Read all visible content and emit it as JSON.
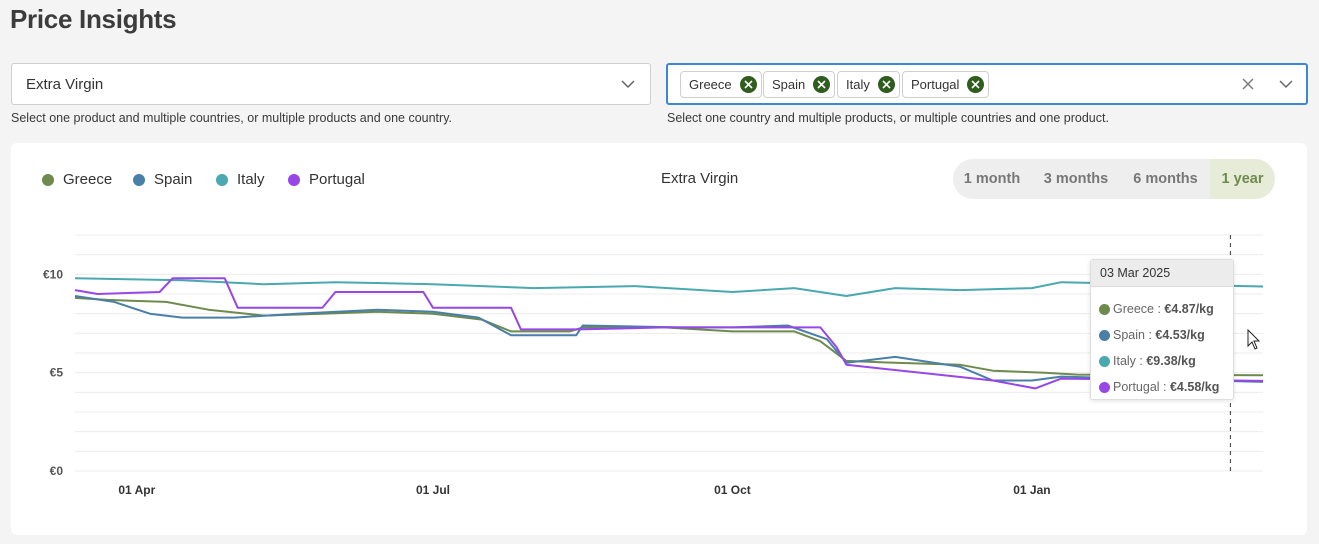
{
  "page": {
    "title": "Price Insights"
  },
  "product_select": {
    "value": "Extra Virgin",
    "helper": "Select one product and multiple countries, or multiple products and one country."
  },
  "country_select": {
    "chips": [
      {
        "label": "Greece"
      },
      {
        "label": "Spain"
      },
      {
        "label": "Italy"
      },
      {
        "label": "Portugal"
      }
    ],
    "helper": "Select one country and multiple products, or multiple countries and one product."
  },
  "legend": [
    {
      "label": "Greece",
      "color": "#6e8a4c"
    },
    {
      "label": "Spain",
      "color": "#4a7fa8"
    },
    {
      "label": "Italy",
      "color": "#4aa8b0"
    },
    {
      "label": "Portugal",
      "color": "#9747e6"
    }
  ],
  "time_ranges": [
    {
      "label": "1 month",
      "active": false
    },
    {
      "label": "3 months",
      "active": false
    },
    {
      "label": "6 months",
      "active": false
    },
    {
      "label": "1 year",
      "active": true
    }
  ],
  "tooltip": {
    "date": "03 Mar 2025",
    "rows": [
      {
        "country": "Greece",
        "sep": " : ",
        "value": "€4.87/kg",
        "color": "#6e8a4c"
      },
      {
        "country": "Spain",
        "sep": " : ",
        "value": "€4.53/kg",
        "color": "#4a7fa8"
      },
      {
        "country": "Italy",
        "sep": " : ",
        "value": "€9.38/kg",
        "color": "#4aa8b0"
      },
      {
        "country": "Portugal",
        "sep": " : ",
        "value": "€4.58/kg",
        "color": "#9747e6"
      }
    ]
  },
  "chart_data": {
    "type": "line",
    "title": "Extra Virgin",
    "x_range": [
      "2024-03-13",
      "2025-03-13"
    ],
    "ylim": [
      0,
      12
    ],
    "y_ticks": [
      {
        "value": 10,
        "label": "€10"
      },
      {
        "value": 5,
        "label": "€5"
      },
      {
        "value": 0,
        "label": "€0"
      }
    ],
    "x_ticks": [
      {
        "date": "2024-04-01",
        "label": "01 Apr"
      },
      {
        "date": "2024-07-01",
        "label": "01 Jul"
      },
      {
        "date": "2024-10-01",
        "label": "01 Oct"
      },
      {
        "date": "2025-01-01",
        "label": "01 Jan"
      }
    ],
    "grid": true,
    "legend_position": "top-left",
    "hover_date": "2025-03-03",
    "series": [
      {
        "name": "Greece",
        "color": "#6e8a4c",
        "points": [
          [
            "2024-03-13",
            8.8
          ],
          [
            "2024-03-23",
            8.7
          ],
          [
            "2024-04-10",
            8.6
          ],
          [
            "2024-04-23",
            8.2
          ],
          [
            "2024-05-10",
            7.9
          ],
          [
            "2024-05-28",
            8.0
          ],
          [
            "2024-06-14",
            8.1
          ],
          [
            "2024-07-01",
            8.0
          ],
          [
            "2024-07-16",
            7.7
          ],
          [
            "2024-07-25",
            7.1
          ],
          [
            "2024-08-12",
            7.1
          ],
          [
            "2024-08-16",
            7.3
          ],
          [
            "2024-09-10",
            7.3
          ],
          [
            "2024-10-01",
            7.1
          ],
          [
            "2024-10-20",
            7.1
          ],
          [
            "2024-10-28",
            6.6
          ],
          [
            "2024-11-05",
            5.6
          ],
          [
            "2024-11-20",
            5.5
          ],
          [
            "2024-12-10",
            5.4
          ],
          [
            "2024-12-20",
            5.1
          ],
          [
            "2025-01-05",
            5.0
          ],
          [
            "2025-01-15",
            4.9
          ],
          [
            "2025-03-13",
            4.87
          ]
        ]
      },
      {
        "name": "Spain",
        "color": "#4a7fa8",
        "points": [
          [
            "2024-03-13",
            8.9
          ],
          [
            "2024-03-25",
            8.6
          ],
          [
            "2024-04-05",
            8.0
          ],
          [
            "2024-04-15",
            7.8
          ],
          [
            "2024-05-01",
            7.8
          ],
          [
            "2024-05-20",
            8.0
          ],
          [
            "2024-06-14",
            8.2
          ],
          [
            "2024-07-01",
            8.1
          ],
          [
            "2024-07-15",
            7.8
          ],
          [
            "2024-07-25",
            6.9
          ],
          [
            "2024-08-14",
            6.9
          ],
          [
            "2024-08-16",
            7.4
          ],
          [
            "2024-09-15",
            7.3
          ],
          [
            "2024-10-01",
            7.3
          ],
          [
            "2024-10-18",
            7.4
          ],
          [
            "2024-10-30",
            6.7
          ],
          [
            "2024-11-05",
            5.5
          ],
          [
            "2024-11-20",
            5.8
          ],
          [
            "2024-12-10",
            5.3
          ],
          [
            "2024-12-20",
            4.6
          ],
          [
            "2025-01-01",
            4.6
          ],
          [
            "2025-01-10",
            4.8
          ],
          [
            "2025-03-13",
            4.53
          ]
        ]
      },
      {
        "name": "Italy",
        "color": "#4aa8b0",
        "points": [
          [
            "2024-03-13",
            9.8
          ],
          [
            "2024-04-15",
            9.7
          ],
          [
            "2024-05-10",
            9.5
          ],
          [
            "2024-06-01",
            9.6
          ],
          [
            "2024-07-01",
            9.5
          ],
          [
            "2024-08-01",
            9.3
          ],
          [
            "2024-09-01",
            9.4
          ],
          [
            "2024-10-01",
            9.1
          ],
          [
            "2024-10-20",
            9.3
          ],
          [
            "2024-11-05",
            8.9
          ],
          [
            "2024-11-20",
            9.3
          ],
          [
            "2024-12-10",
            9.2
          ],
          [
            "2025-01-01",
            9.3
          ],
          [
            "2025-01-10",
            9.6
          ],
          [
            "2025-03-13",
            9.38
          ]
        ]
      },
      {
        "name": "Portugal",
        "color": "#9747e6",
        "points": [
          [
            "2024-03-13",
            9.2
          ],
          [
            "2024-03-20",
            9.0
          ],
          [
            "2024-04-08",
            9.1
          ],
          [
            "2024-04-12",
            9.8
          ],
          [
            "2024-04-28",
            9.8
          ],
          [
            "2024-05-02",
            8.3
          ],
          [
            "2024-05-28",
            8.3
          ],
          [
            "2024-06-01",
            9.1
          ],
          [
            "2024-06-28",
            9.1
          ],
          [
            "2024-07-01",
            8.3
          ],
          [
            "2024-07-25",
            8.3
          ],
          [
            "2024-07-28",
            7.2
          ],
          [
            "2024-08-15",
            7.2
          ],
          [
            "2024-09-10",
            7.3
          ],
          [
            "2024-10-01",
            7.3
          ],
          [
            "2024-10-28",
            7.3
          ],
          [
            "2024-11-02",
            6.3
          ],
          [
            "2024-11-05",
            5.4
          ],
          [
            "2024-12-20",
            4.6
          ],
          [
            "2025-01-02",
            4.2
          ],
          [
            "2025-01-10",
            4.7
          ],
          [
            "2025-03-13",
            4.58
          ]
        ]
      }
    ]
  }
}
